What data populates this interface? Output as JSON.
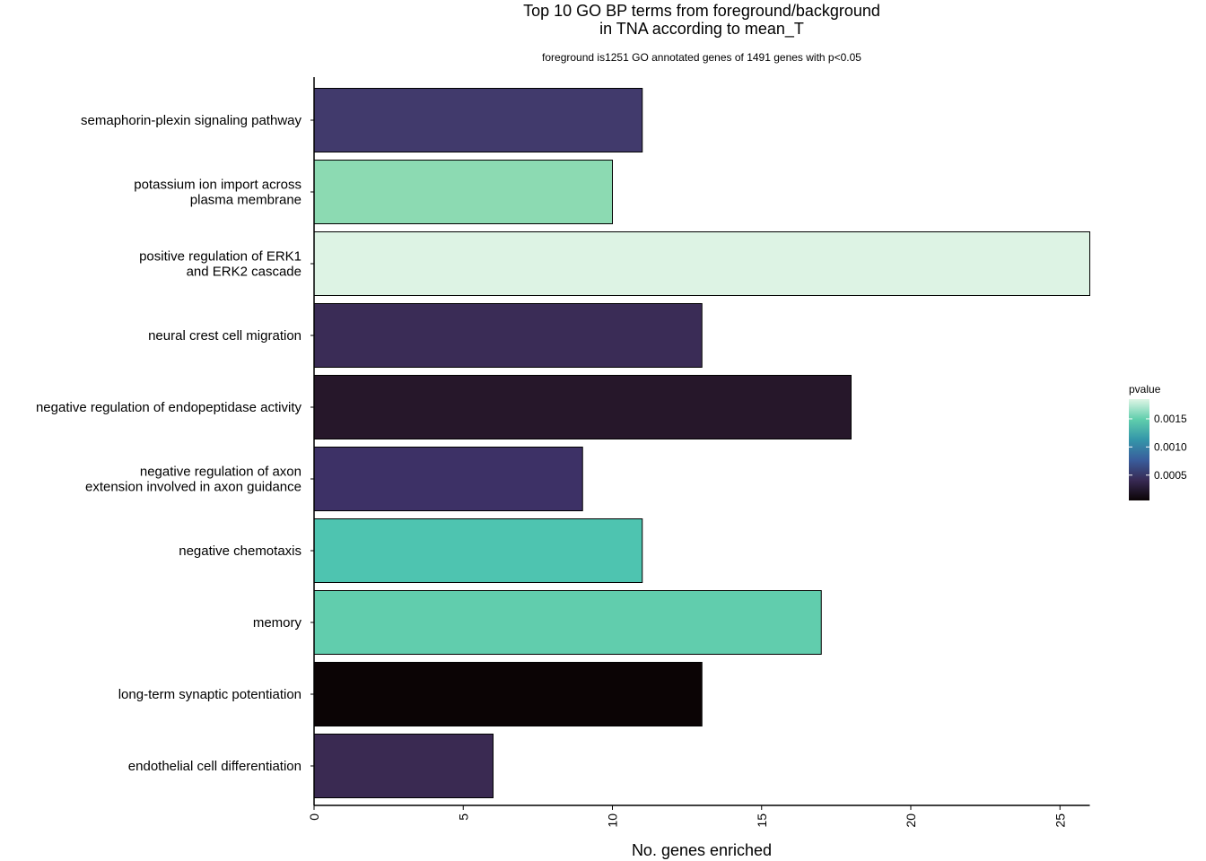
{
  "chart_data": {
    "type": "bar",
    "orientation": "horizontal",
    "title": [
      "Top 10 GO BP terms from foreground/background",
      "in TNA according to mean_T"
    ],
    "subtitle": "foreground is1251 GO annotated genes of 1491 genes with p<0.05",
    "xlabel": "No. genes enriched",
    "ylabel": "",
    "xlim": [
      0,
      26
    ],
    "xticks": [
      0,
      5,
      10,
      15,
      20,
      25
    ],
    "grid": false,
    "legend": {
      "title": "pvalue",
      "placement": "right",
      "min": 5e-05,
      "max": 0.00185,
      "ticks": [
        {
          "value": 0.0005,
          "label": "0.0005"
        },
        {
          "value": 0.001,
          "label": "0.0010"
        },
        {
          "value": 0.0015,
          "label": "0.0015"
        }
      ],
      "gradient_colors": [
        "#0b0405",
        "#382a54",
        "#395d9c",
        "#3496a9",
        "#60ceac",
        "#def5e5"
      ]
    },
    "categories": [
      [
        "semaphorin-plexin signaling pathway"
      ],
      [
        "potassium ion import across",
        "plasma membrane"
      ],
      [
        "positive regulation of ERK1",
        "and ERK2 cascade"
      ],
      [
        "neural crest cell migration"
      ],
      [
        "negative regulation of endopeptidase activity"
      ],
      [
        "negative regulation of axon",
        "extension involved in axon guidance"
      ],
      [
        "negative chemotaxis"
      ],
      [
        "memory"
      ],
      [
        "long-term synaptic potentiation"
      ],
      [
        "endothelial cell differentiation"
      ]
    ],
    "values": [
      11,
      10,
      26,
      13,
      18,
      9,
      11,
      17,
      13,
      6
    ],
    "pvalues": [
      0.0005,
      0.00135,
      0.00185,
      0.0004,
      0.0002,
      0.00045,
      0.0011,
      0.00125,
      5e-05,
      0.00038
    ],
    "bar_colors": [
      "#413a6c",
      "#8cdab2",
      "#ddf3e4",
      "#3a2c56",
      "#26172a",
      "#3d3166",
      "#4ec4b0",
      "#61cdad",
      "#0b0405",
      "#3a2a52"
    ]
  }
}
